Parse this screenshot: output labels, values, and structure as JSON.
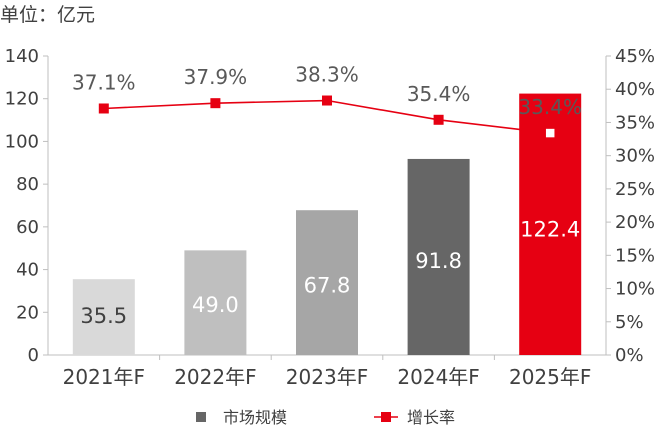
{
  "unit_label": "单位：亿元",
  "legend": {
    "bar_label": "市场规模",
    "line_label": "增长率"
  },
  "colors": {
    "bars": [
      "#d9d9d9",
      "#bfbfbf",
      "#a6a6a6",
      "#666666",
      "#e60012"
    ],
    "bar_label_text": [
      "#404040",
      "#ffffff",
      "#ffffff",
      "#ffffff",
      "#ffffff"
    ],
    "line": "#e60012",
    "axis": "#bfbfbf"
  },
  "chart_data": {
    "type": "bar",
    "categories": [
      "2021年F",
      "2022年F",
      "2023年F",
      "2024年F",
      "2025年F"
    ],
    "series": [
      {
        "name": "市场规模",
        "type": "bar",
        "axis": "left",
        "values": [
          35.5,
          49.0,
          67.8,
          91.8,
          122.4
        ],
        "labels": [
          "35.5",
          "49.0",
          "67.8",
          "91.8",
          "122.4"
        ]
      },
      {
        "name": "增长率",
        "type": "line",
        "axis": "right",
        "values": [
          37.1,
          37.9,
          38.3,
          35.4,
          33.4
        ],
        "labels": [
          "37.1%",
          "37.9%",
          "38.3%",
          "35.4%",
          "33.4%"
        ]
      }
    ],
    "ylim_left": [
      0,
      140
    ],
    "yticks_left": [
      "0",
      "20",
      "40",
      "60",
      "80",
      "100",
      "120",
      "140"
    ],
    "ylim_right": [
      0,
      45
    ],
    "yticks_right": [
      "0%",
      "5%",
      "10%",
      "15%",
      "20%",
      "25%",
      "30%",
      "35%",
      "40%",
      "45%"
    ],
    "grid": false,
    "legend_position": "bottom"
  }
}
